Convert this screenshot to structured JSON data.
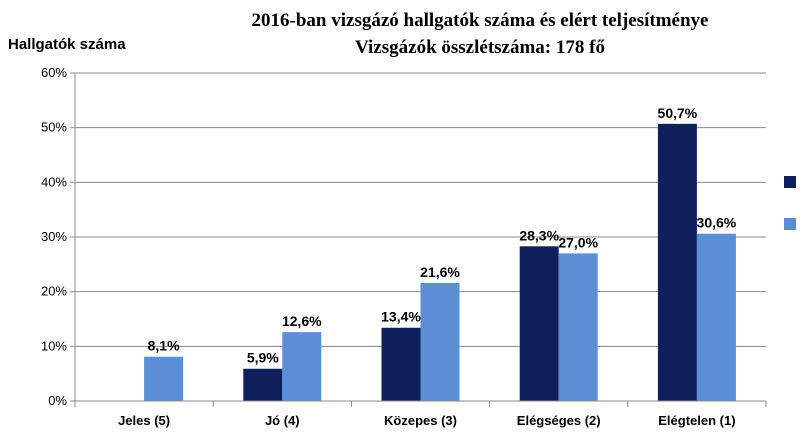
{
  "chart_data": {
    "type": "bar",
    "title_lines": [
      "2016-ban vizsgázó  hallgatók száma  és elért teljesítménye",
      "Vizsgázók  összlétszáma:  178 fő"
    ],
    "ylabel": "Hallgatók száma",
    "xlabel": "",
    "ylim": [
      0,
      60
    ],
    "yticks": [
      "0%",
      "10%",
      "20%",
      "30%",
      "40%",
      "50%",
      "60%"
    ],
    "grid": true,
    "legend": "right",
    "categories": [
      "Jeles (5)",
      "Jó (4)",
      "Közepes (3)",
      "Elégséges (2)",
      "Elégtelen (1)"
    ],
    "series": [
      {
        "color": "#0e1f5b",
        "values": [
          null,
          5.9,
          13.4,
          28.3,
          50.7
        ],
        "labels": [
          "",
          "5,9%",
          "13,4%",
          "28,3%",
          "50,7%"
        ]
      },
      {
        "color": "#5b8fd6",
        "values": [
          8.1,
          12.6,
          21.6,
          27.0,
          30.6
        ],
        "labels": [
          "8,1%",
          "12,6%",
          "21,6%",
          "27,0%",
          "30,6%"
        ]
      }
    ]
  }
}
